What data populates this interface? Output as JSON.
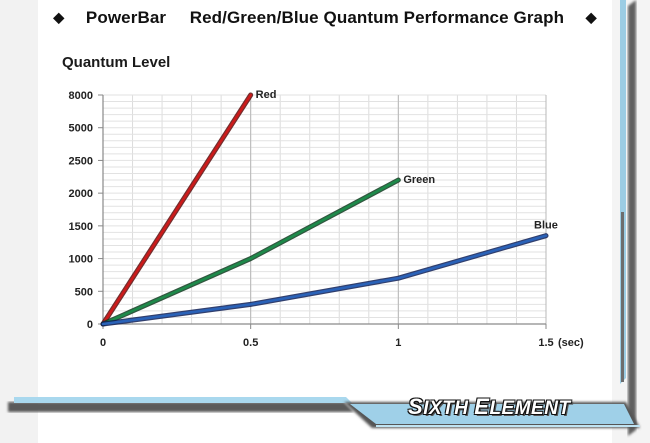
{
  "header": {
    "bullet_left": "◆",
    "brand": "PowerBar",
    "title": "Red/Green/Blue Quantum Performance Graph",
    "bullet_right": "◆"
  },
  "footer": {
    "logo_first_initial": "S",
    "logo_first_rest": "IXTH",
    "logo_second_initial": "E",
    "logo_second_rest": "LEMENT"
  },
  "chart_data": {
    "type": "line",
    "title": "",
    "ylabel": "Quantum Level",
    "xlabel": "(sec)",
    "x_ticks": [
      0,
      0.5,
      1,
      1.5
    ],
    "x_tick_labels": [
      "0",
      "0.5",
      "1",
      "1.5"
    ],
    "y_ticks": [
      0,
      500,
      1000,
      1500,
      2000,
      2500,
      5000,
      8000
    ],
    "y_tick_labels": [
      "0",
      "500",
      "1000",
      "1500",
      "2000",
      "2500",
      "5000",
      "8000"
    ],
    "xlim": [
      0,
      1.5
    ],
    "grid": true,
    "series": [
      {
        "name": "Red",
        "color": "#cc1a1a",
        "points": [
          [
            0,
            0
          ],
          [
            0.5,
            8000
          ]
        ]
      },
      {
        "name": "Green",
        "color": "#1d8a4a",
        "points": [
          [
            0,
            0
          ],
          [
            0.5,
            1000
          ],
          [
            1,
            2200
          ]
        ]
      },
      {
        "name": "Blue",
        "color": "#2a62b8",
        "points": [
          [
            0,
            0
          ],
          [
            0.5,
            300
          ],
          [
            1,
            700
          ],
          [
            1.5,
            1350
          ]
        ]
      }
    ]
  }
}
